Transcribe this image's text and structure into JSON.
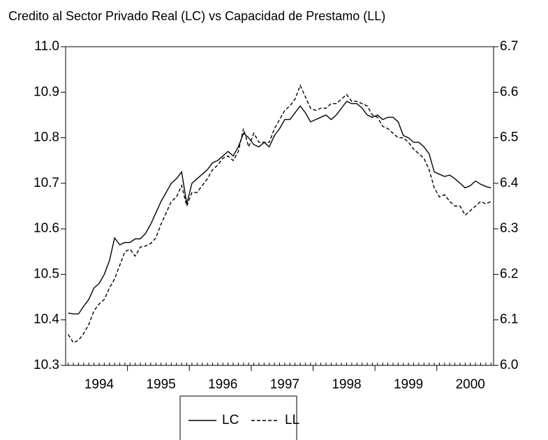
{
  "chart_data": {
    "type": "line",
    "title": "Credito al Sector Privado Real (LC)  vs Capacidad de Prestamo (LL)",
    "categories": [
      null,
      null,
      null,
      null,
      null,
      null,
      "1994",
      null,
      null,
      null,
      null,
      null,
      null,
      null,
      null,
      null,
      null,
      null,
      "1995",
      null,
      null,
      null,
      null,
      null,
      null,
      null,
      null,
      null,
      null,
      null,
      "1996",
      null,
      null,
      null,
      null,
      null,
      null,
      null,
      null,
      null,
      null,
      null,
      "1997",
      null,
      null,
      null,
      null,
      null,
      null,
      null,
      null,
      null,
      null,
      null,
      "1998",
      null,
      null,
      null,
      null,
      null,
      null,
      null,
      null,
      null,
      null,
      null,
      "1999",
      null,
      null,
      null,
      null,
      null,
      null,
      null,
      null,
      null,
      null,
      null,
      "2000",
      null,
      null,
      null,
      null
    ],
    "series": [
      {
        "name": "LC",
        "color": "#000000",
        "style": "solid",
        "axis": "y",
        "values": [
          10.415,
          10.413,
          10.413,
          10.43,
          10.445,
          10.47,
          10.48,
          10.5,
          10.53,
          10.58,
          10.565,
          10.57,
          10.57,
          10.578,
          10.578,
          10.59,
          10.61,
          10.635,
          10.66,
          10.68,
          10.7,
          10.71,
          10.725,
          10.655,
          10.7,
          10.71,
          10.72,
          10.73,
          10.745,
          10.75,
          10.76,
          10.77,
          10.76,
          10.78,
          10.81,
          10.8,
          10.785,
          10.78,
          10.79,
          10.78,
          10.805,
          10.82,
          10.84,
          10.84,
          10.855,
          10.87,
          10.855,
          10.835,
          10.84,
          10.845,
          10.85,
          10.84,
          10.85,
          10.865,
          10.88,
          10.875,
          10.875,
          10.865,
          10.85,
          10.845,
          10.85,
          10.84,
          10.845,
          10.845,
          10.835,
          10.805,
          10.8,
          10.79,
          10.79,
          10.78,
          10.765,
          10.725,
          10.72,
          10.715,
          10.718,
          10.71,
          10.7,
          10.69,
          10.695,
          10.705,
          10.698,
          10.693,
          10.69
        ]
      },
      {
        "name": "LL",
        "color": "#000000",
        "style": "dashed",
        "axis": "y2",
        "values": [
          6.068,
          6.05,
          6.055,
          6.07,
          6.09,
          6.12,
          6.135,
          6.145,
          6.17,
          6.19,
          6.22,
          6.25,
          6.255,
          6.24,
          6.26,
          6.262,
          6.268,
          6.28,
          6.31,
          6.335,
          6.36,
          6.37,
          6.395,
          6.35,
          6.38,
          6.38,
          6.395,
          6.41,
          6.43,
          6.44,
          6.455,
          6.46,
          6.45,
          6.47,
          6.52,
          6.48,
          6.51,
          6.49,
          6.49,
          6.49,
          6.52,
          6.54,
          6.56,
          6.57,
          6.585,
          6.615,
          6.59,
          6.565,
          6.56,
          6.565,
          6.565,
          6.575,
          6.575,
          6.585,
          6.595,
          6.58,
          6.58,
          6.575,
          6.57,
          6.55,
          6.545,
          6.525,
          6.52,
          6.51,
          6.5,
          6.5,
          6.49,
          6.475,
          6.465,
          6.455,
          6.43,
          6.39,
          6.37,
          6.375,
          6.36,
          6.35,
          6.35,
          6.33,
          6.34,
          6.35,
          6.36,
          6.355,
          6.36
        ]
      }
    ],
    "ylim": [
      10.3,
      11.0
    ],
    "yticks": [
      {
        "value": 10.3,
        "label": "10.3"
      },
      {
        "value": 10.4,
        "label": "10.4"
      },
      {
        "value": 10.5,
        "label": "10.5"
      },
      {
        "value": 10.6,
        "label": "10.6"
      },
      {
        "value": 10.7,
        "label": "10.7"
      },
      {
        "value": 10.8,
        "label": "10.8"
      },
      {
        "value": 10.9,
        "label": "10.9"
      },
      {
        "value": 11.0,
        "label": "11.0"
      }
    ],
    "y2lim": [
      6.0,
      6.7
    ],
    "y2ticks": [
      {
        "value": 6.0,
        "label": "6.0"
      },
      {
        "value": 6.1,
        "label": "6.1"
      },
      {
        "value": 6.2,
        "label": "6.2"
      },
      {
        "value": 6.3,
        "label": "6.3"
      },
      {
        "value": 6.4,
        "label": "6.4"
      },
      {
        "value": 6.5,
        "label": "6.5"
      },
      {
        "value": 6.6,
        "label": "6.6"
      },
      {
        "value": 6.7,
        "label": "6.7"
      }
    ],
    "grid": false,
    "legend": "bottom"
  }
}
